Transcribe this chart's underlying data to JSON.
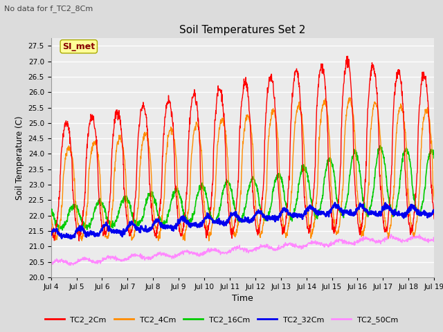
{
  "title": "Soil Temperatures Set 2",
  "subtitle": "No data for f_TC2_8Cm",
  "xlabel": "Time",
  "ylabel": "Soil Temperature (C)",
  "ylim": [
    20.0,
    27.75
  ],
  "yticks": [
    20.0,
    20.5,
    21.0,
    21.5,
    22.0,
    22.5,
    23.0,
    23.5,
    24.0,
    24.5,
    25.0,
    25.5,
    26.0,
    26.5,
    27.0,
    27.5
  ],
  "xtick_labels": [
    "Jul 4",
    "Jul 5",
    "Jul 6",
    "Jul 7",
    "Jul 8",
    "Jul 9",
    "Jul 10",
    "Jul 11",
    "Jul 12",
    "Jul 13",
    "Jul 14",
    "Jul 15",
    "Jul 16",
    "Jul 17",
    "Jul 18",
    "Jul 19"
  ],
  "legend_labels": [
    "TC2_2Cm",
    "TC2_4Cm",
    "TC2_16Cm",
    "TC2_32Cm",
    "TC2_50Cm"
  ],
  "colors": {
    "TC2_2Cm": "#FF0000",
    "TC2_4Cm": "#FF8C00",
    "TC2_16Cm": "#00CC00",
    "TC2_32Cm": "#0000EE",
    "TC2_50Cm": "#FF88FF"
  },
  "annotation_text": "SI_met",
  "annotation_box_color": "#FFFF99",
  "annotation_text_color": "#880000",
  "bg_color": "#DCDCDC",
  "plot_bg_color": "#EBEBEB",
  "grid_color": "#FFFFFF",
  "seed": 42
}
